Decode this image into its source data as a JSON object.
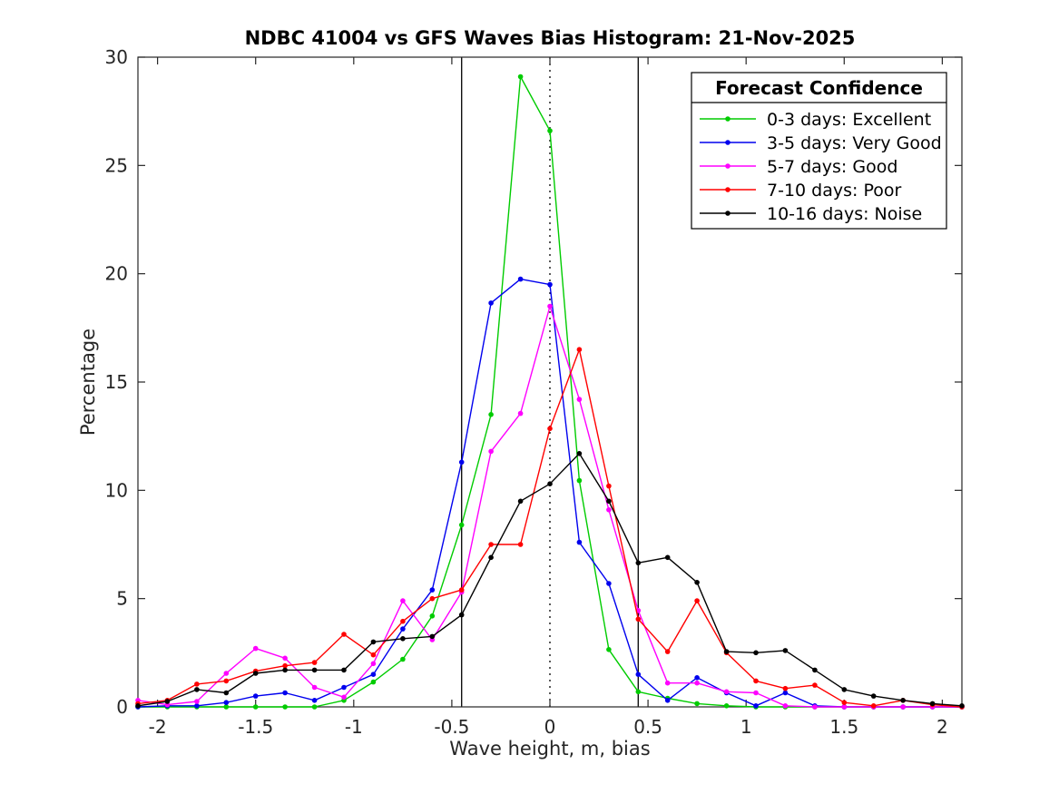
{
  "colors": {
    "background": "#ffffff",
    "axis": "#262626",
    "title_text": "#000000",
    "reference_line": "#000000"
  },
  "chart_data": {
    "type": "line",
    "title": "NDBC 41004 vs GFS Waves Bias Histogram: 21-Nov-2025",
    "xlabel": "Wave height, m, bias",
    "ylabel": "Percentage",
    "xlim": [
      -2.1,
      2.1
    ],
    "ylim": [
      0,
      30
    ],
    "xticks": [
      -2,
      -1.5,
      -1,
      -0.5,
      0,
      0.5,
      1,
      1.5,
      2
    ],
    "yticks": [
      0,
      5,
      10,
      15,
      20,
      25,
      30
    ],
    "grid": false,
    "marker": "dot",
    "legend": {
      "title": "Forecast Confidence",
      "position": "top-right"
    },
    "reference_lines": {
      "solid_x": [
        -0.45,
        0.45
      ],
      "dotted_x": [
        0
      ]
    },
    "x": [
      -2.1,
      -1.95,
      -1.8,
      -1.65,
      -1.5,
      -1.35,
      -1.2,
      -1.05,
      -0.9,
      -0.75,
      -0.6,
      -0.45,
      -0.3,
      -0.15,
      0,
      0.15,
      0.3,
      0.45,
      0.6,
      0.75,
      0.9,
      1.05,
      1.2,
      1.35,
      1.5,
      1.65,
      1.8,
      1.95,
      2.1
    ],
    "series": [
      {
        "name": "0-3 days: Excellent",
        "color": "#00CC00",
        "values": [
          0,
          0,
          0,
          0,
          0,
          0,
          0,
          0.3,
          1.15,
          2.2,
          4.2,
          8.4,
          13.5,
          29.1,
          26.6,
          10.45,
          2.65,
          0.7,
          0.4,
          0.15,
          0.05,
          0,
          0,
          0,
          0,
          0,
          0,
          0,
          0
        ]
      },
      {
        "name": "3-5 days: Very Good",
        "color": "#0000EE",
        "values": [
          0,
          0.05,
          0.05,
          0.2,
          0.5,
          0.65,
          0.3,
          0.9,
          1.5,
          3.6,
          5.4,
          11.3,
          18.65,
          19.75,
          19.5,
          7.6,
          5.7,
          1.5,
          0.3,
          1.35,
          0.65,
          0.05,
          0.65,
          0.05,
          0,
          0,
          0,
          0,
          0
        ]
      },
      {
        "name": "5-7 days: Good",
        "color": "#FF00FF",
        "values": [
          0.3,
          0.1,
          0.25,
          1.55,
          2.7,
          2.25,
          0.9,
          0.45,
          2.0,
          4.9,
          3.1,
          5.3,
          11.8,
          13.55,
          18.5,
          14.2,
          9.1,
          4.45,
          1.1,
          1.1,
          0.7,
          0.65,
          0.05,
          0,
          0,
          0,
          0,
          0,
          0
        ]
      },
      {
        "name": "7-10 days: Poor",
        "color": "#FF0000",
        "values": [
          0.15,
          0.3,
          1.05,
          1.2,
          1.65,
          1.9,
          2.05,
          3.35,
          2.4,
          3.95,
          5.0,
          5.4,
          7.5,
          7.5,
          12.85,
          16.5,
          10.2,
          4.05,
          2.55,
          4.9,
          2.5,
          1.2,
          0.85,
          1.0,
          0.2,
          0.05,
          0.3,
          0.1,
          0
        ]
      },
      {
        "name": "10-16 days: Noise",
        "color": "#000000",
        "values": [
          0.05,
          0.25,
          0.8,
          0.65,
          1.55,
          1.7,
          1.7,
          1.7,
          3.0,
          3.15,
          3.25,
          4.25,
          6.9,
          9.5,
          10.3,
          11.7,
          9.5,
          6.65,
          6.9,
          5.75,
          2.55,
          2.5,
          2.6,
          1.7,
          0.8,
          0.5,
          0.3,
          0.15,
          0.05
        ]
      }
    ]
  }
}
